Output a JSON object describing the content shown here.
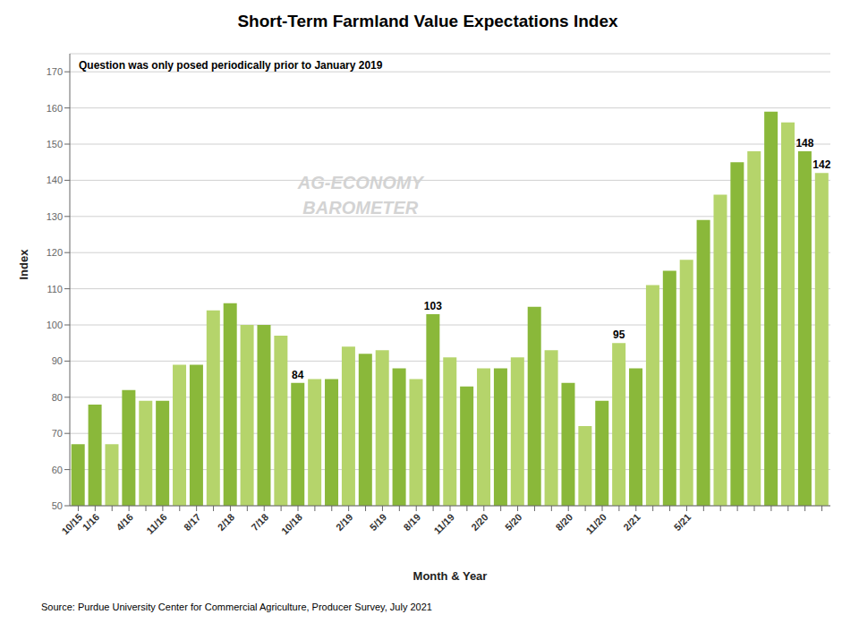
{
  "chart_data": {
    "type": "bar",
    "title": "Short-Term Farmland Value Expectations Index",
    "xlabel": "Month & Year",
    "ylabel": "Index",
    "annotations": [
      "Question was only posed periodically prior to January 2019",
      "AG-ECONOMY",
      "BAROMETER",
      "Source: Purdue University Center for Commercial Agriculture, Producer Survey, July 2021"
    ],
    "categories": [
      "10/15",
      "1/16",
      null,
      "4/16",
      null,
      "11/16",
      null,
      "8/17",
      null,
      "2/18",
      null,
      "7/18",
      null,
      "10/18",
      null,
      null,
      "2/19",
      null,
      "5/19",
      null,
      "8/19",
      null,
      "11/19",
      null,
      "2/20",
      null,
      "5/20",
      null,
      null,
      "8/20",
      null,
      "11/20",
      null,
      "2/21",
      null,
      null,
      "5/21",
      null,
      null,
      null,
      null,
      null,
      null,
      null,
      null
    ],
    "values": [
      67,
      78,
      67,
      82,
      79,
      79,
      89,
      89,
      104,
      106,
      100,
      100,
      97,
      84,
      85,
      85,
      94,
      92,
      93,
      88,
      85,
      103,
      91,
      83,
      88,
      88,
      91,
      105,
      93,
      84,
      72,
      79,
      95,
      88,
      111,
      115,
      118,
      129,
      136,
      145,
      148,
      159,
      156,
      148,
      142
    ],
    "value_labels": [
      null,
      null,
      null,
      null,
      null,
      null,
      null,
      null,
      null,
      null,
      null,
      null,
      null,
      "84",
      null,
      null,
      null,
      null,
      null,
      null,
      null,
      "103",
      null,
      null,
      null,
      null,
      null,
      null,
      null,
      null,
      null,
      null,
      "95",
      null,
      null,
      null,
      null,
      null,
      null,
      null,
      null,
      null,
      null,
      "148",
      "142"
    ],
    "colors": [
      "#8ab83a",
      "#8ab83a",
      "#b5d46b",
      "#8ab83a",
      "#b5d46b",
      "#8ab83a",
      "#b5d46b",
      "#8ab83a",
      "#b5d46b",
      "#8ab83a",
      "#b5d46b",
      "#8ab83a",
      "#b5d46b",
      "#8ab83a",
      "#b5d46b",
      "#8ab83a",
      "#b5d46b",
      "#8ab83a",
      "#b5d46b",
      "#8ab83a",
      "#b5d46b",
      "#8ab83a",
      "#b5d46b",
      "#8ab83a",
      "#b5d46b",
      "#8ab83a",
      "#b5d46b",
      "#8ab83a",
      "#b5d46b",
      "#8ab83a",
      "#b5d46b",
      "#8ab83a",
      "#b5d46b",
      "#8ab83a",
      "#b5d46b",
      "#8ab83a",
      "#b5d46b",
      "#8ab83a",
      "#b5d46b",
      "#8ab83a",
      "#b5d46b",
      "#8ab83a",
      "#b5d46b",
      "#8ab83a",
      "#b5d46b"
    ],
    "ylim": [
      50,
      175
    ],
    "yticks": [
      50,
      60,
      70,
      80,
      90,
      100,
      110,
      120,
      130,
      140,
      150,
      160,
      170
    ],
    "grid": true
  }
}
